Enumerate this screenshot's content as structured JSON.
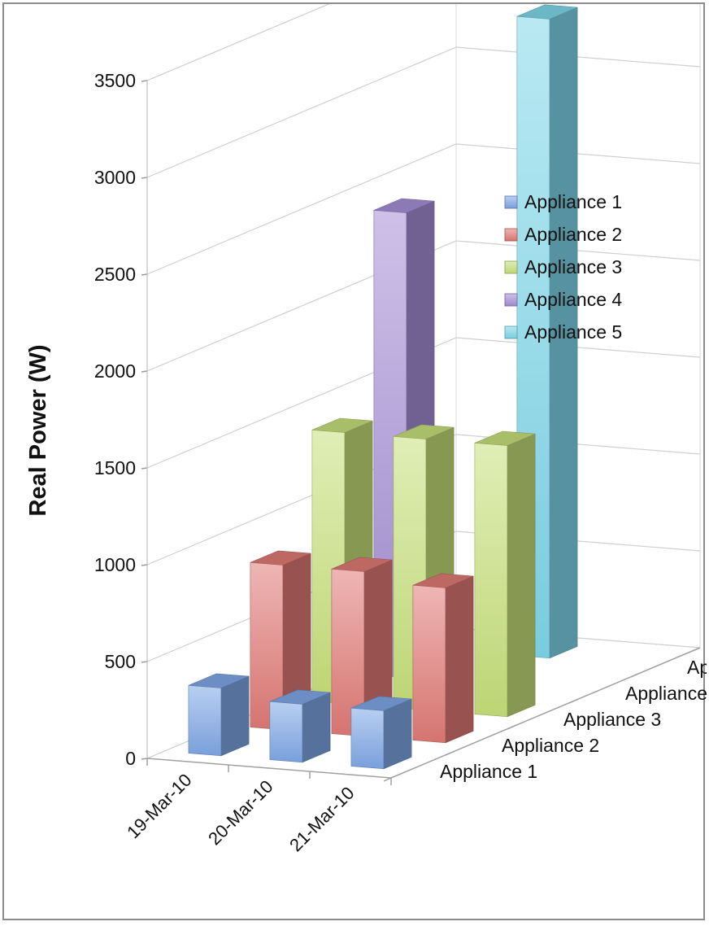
{
  "chart_data": {
    "type": "bar",
    "subtype": "3d-column",
    "title": "",
    "xlabel": "",
    "ylabel": "Real Power (W)",
    "ylim": [
      0,
      3500
    ],
    "yticks": [
      "0",
      "500",
      "1000",
      "1500",
      "2000",
      "2500",
      "3000",
      "3500"
    ],
    "categories": [
      "19-Mar-10",
      "20-Mar-10",
      "21-Mar-10"
    ],
    "depth_labels": [
      "Appliance 1",
      "Appliance 2",
      "Appliance 3",
      "Appliance 4",
      "Appliance 5"
    ],
    "series": [
      {
        "name": "Appliance 1",
        "color": "#7fa7e6",
        "values": [
          350,
          300,
          300
        ]
      },
      {
        "name": "Appliance 2",
        "color": "#e07a76",
        "values": [
          850,
          850,
          800
        ]
      },
      {
        "name": "Appliance 3",
        "color": "#c6e07a",
        "values": [
          1400,
          1400,
          1400
        ]
      },
      {
        "name": "Appliance 4",
        "color": "#a58fd6",
        "values": [
          2400,
          0,
          0
        ]
      },
      {
        "name": "Appliance 5",
        "color": "#7fd7ea",
        "values": [
          0,
          3300,
          0
        ]
      }
    ],
    "legend_position": "right",
    "grid": true
  }
}
